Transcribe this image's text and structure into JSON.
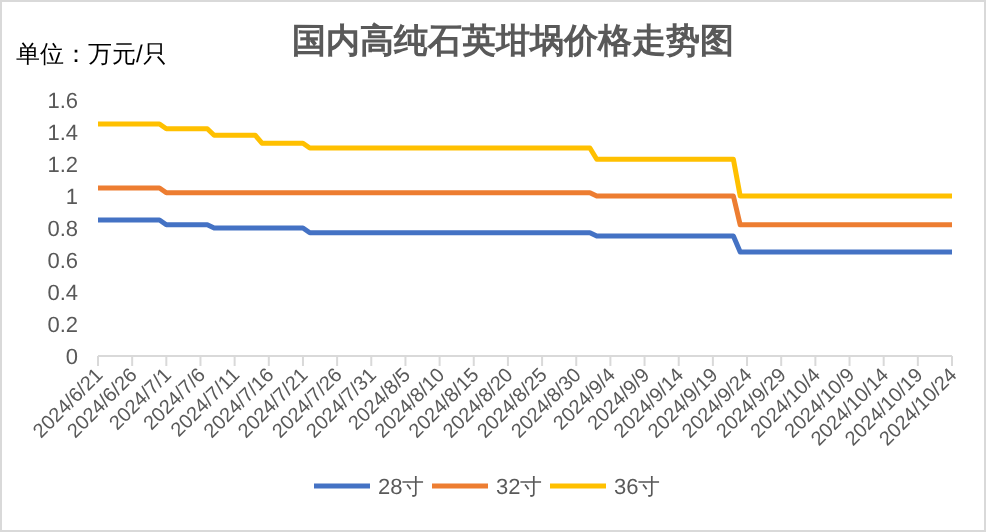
{
  "chart_data": {
    "type": "line",
    "title": "国内高纯石英坩埚价格走势图",
    "ylabel": "单位：万元/只",
    "xlim": [
      "2024-06-21",
      "2024-10-24"
    ],
    "xticks": [
      {
        "value": "2024-06-21",
        "label": "2024/6/21"
      },
      {
        "value": "2024-06-26",
        "label": "2024/6/26"
      },
      {
        "value": "2024-07-01",
        "label": "2024/7/1"
      },
      {
        "value": "2024-07-06",
        "label": "2024/7/6"
      },
      {
        "value": "2024-07-11",
        "label": "2024/7/11"
      },
      {
        "value": "2024-07-16",
        "label": "2024/7/16"
      },
      {
        "value": "2024-07-21",
        "label": "2024/7/21"
      },
      {
        "value": "2024-07-26",
        "label": "2024/7/26"
      },
      {
        "value": "2024-07-31",
        "label": "2024/7/31"
      },
      {
        "value": "2024-08-05",
        "label": "2024/8/5"
      },
      {
        "value": "2024-08-10",
        "label": "2024/8/10"
      },
      {
        "value": "2024-08-15",
        "label": "2024/8/15"
      },
      {
        "value": "2024-08-20",
        "label": "2024/8/20"
      },
      {
        "value": "2024-08-25",
        "label": "2024/8/25"
      },
      {
        "value": "2024-08-30",
        "label": "2024/8/30"
      },
      {
        "value": "2024-09-04",
        "label": "2024/9/4"
      },
      {
        "value": "2024-09-09",
        "label": "2024/9/9"
      },
      {
        "value": "2024-09-14",
        "label": "2024/9/14"
      },
      {
        "value": "2024-09-19",
        "label": "2024/9/19"
      },
      {
        "value": "2024-09-24",
        "label": "2024/9/24"
      },
      {
        "value": "2024-09-29",
        "label": "2024/9/29"
      },
      {
        "value": "2024-10-04",
        "label": "2024/10/4"
      },
      {
        "value": "2024-10-09",
        "label": "2024/10/9"
      },
      {
        "value": "2024-10-14",
        "label": "2024/10/14"
      },
      {
        "value": "2024-10-19",
        "label": "2024/10/19"
      },
      {
        "value": "2024-10-24",
        "label": "2024/10/24"
      }
    ],
    "ylim": [
      0,
      1.6
    ],
    "yticks": [
      0,
      0.2,
      0.4,
      0.6,
      0.8,
      1,
      1.2,
      1.4,
      1.6
    ],
    "grid": false,
    "legend": "bottom",
    "marker": "none",
    "line_style": "solid",
    "series": [
      {
        "name": "28寸",
        "color": "#4472c4",
        "x": [
          "2024-06-21",
          "2024-06-30",
          "2024-07-01",
          "2024-07-07",
          "2024-07-08",
          "2024-07-21",
          "2024-07-22",
          "2024-09-01",
          "2024-09-02",
          "2024-09-22",
          "2024-09-23",
          "2024-10-24"
        ],
        "values": [
          0.85,
          0.85,
          0.82,
          0.82,
          0.8,
          0.8,
          0.77,
          0.77,
          0.75,
          0.75,
          0.65,
          0.65
        ]
      },
      {
        "name": "32寸",
        "color": "#ed7d31",
        "x": [
          "2024-06-21",
          "2024-06-30",
          "2024-07-01",
          "2024-09-01",
          "2024-09-02",
          "2024-09-22",
          "2024-09-23",
          "2024-10-24"
        ],
        "values": [
          1.05,
          1.05,
          1.02,
          1.02,
          1.0,
          1.0,
          0.82,
          0.82
        ]
      },
      {
        "name": "36寸",
        "color": "#ffc000",
        "x": [
          "2024-06-21",
          "2024-06-30",
          "2024-07-01",
          "2024-07-07",
          "2024-07-08",
          "2024-07-14",
          "2024-07-15",
          "2024-07-21",
          "2024-07-22",
          "2024-09-01",
          "2024-09-02",
          "2024-09-22",
          "2024-09-23",
          "2024-10-24"
        ],
        "values": [
          1.45,
          1.45,
          1.42,
          1.42,
          1.38,
          1.38,
          1.33,
          1.33,
          1.3,
          1.3,
          1.23,
          1.23,
          1.0,
          1.0
        ]
      }
    ]
  }
}
